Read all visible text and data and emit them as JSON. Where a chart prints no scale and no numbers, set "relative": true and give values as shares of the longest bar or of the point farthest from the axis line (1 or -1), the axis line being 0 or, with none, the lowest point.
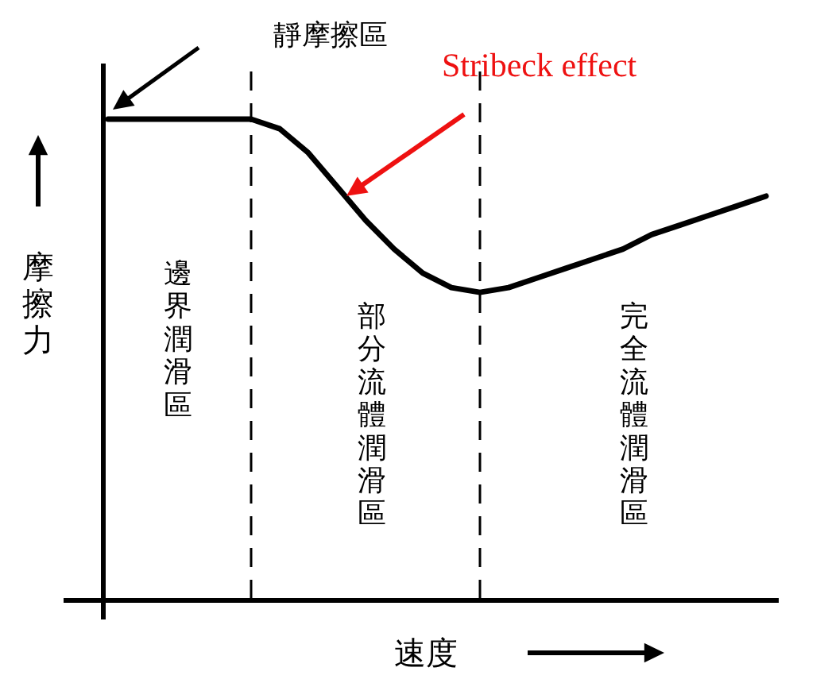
{
  "chart_data": {
    "type": "line",
    "relative": true,
    "categories": [
      null,
      null,
      null,
      null,
      null,
      null,
      null,
      null,
      null,
      null,
      null,
      null,
      null,
      null,
      null,
      null,
      null,
      null,
      null,
      null,
      null,
      null,
      null,
      null
    ],
    "series": [
      {
        "color": "#000000",
        "values": [
          1.0,
          1.0,
          1.0,
          1.0,
          1.0,
          1.0,
          0.98,
          0.93,
          0.86,
          0.79,
          0.73,
          0.68,
          0.65,
          0.64,
          0.65,
          0.67,
          0.69,
          0.71,
          0.73,
          0.76,
          0.78,
          0.8,
          0.82,
          0.84
        ]
      }
    ],
    "xlabel": "速度",
    "ylabel": "摩擦力",
    "annotations": [
      "靜摩擦區",
      "Stribeck effect",
      "邊界潤滑區",
      "部分流體潤滑區",
      "完全流體潤滑區"
    ]
  }
}
